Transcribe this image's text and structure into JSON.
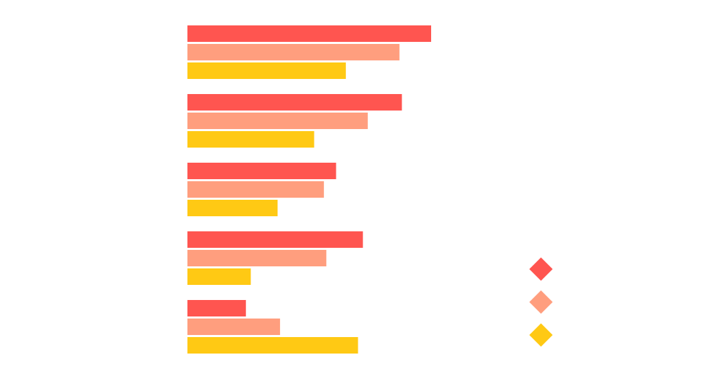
{
  "chart_data": {
    "type": "bar",
    "orientation": "horizontal",
    "categories": [
      "",
      "",
      "",
      "",
      ""
    ],
    "series": [
      {
        "color": "#ff5550",
        "values": [
          100,
          88,
          61,
          72,
          24
        ]
      },
      {
        "color": "#ff9e7e",
        "values": [
          87,
          74,
          56,
          57,
          38
        ]
      },
      {
        "color": "#ffc914",
        "values": [
          65,
          52,
          37,
          26,
          70
        ]
      }
    ],
    "xlim": [
      0,
      100
    ],
    "grid": false,
    "legend": {
      "placement": "bottom-right",
      "marker": "diamond",
      "entries": [
        "",
        "",
        ""
      ]
    }
  }
}
